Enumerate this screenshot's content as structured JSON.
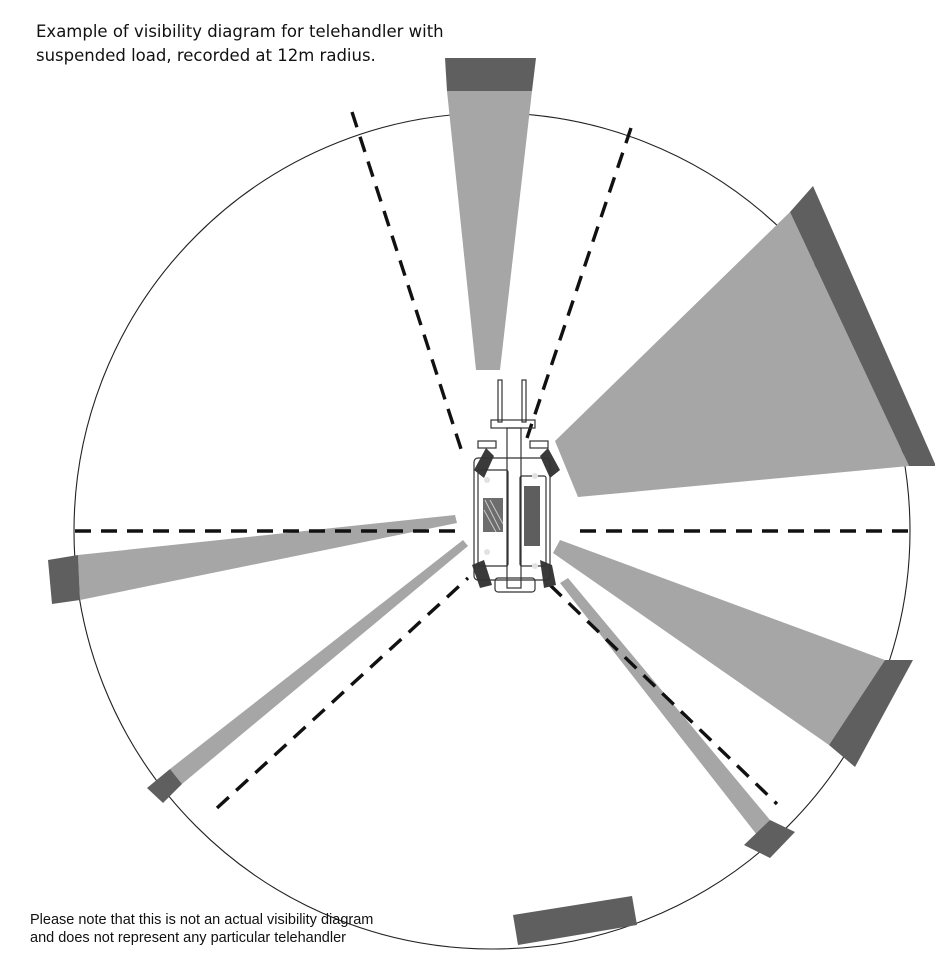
{
  "header": {
    "title_line1": "Example of visibility diagram for telehandler with",
    "title_line2": "suspended load, recorded at 12m radius."
  },
  "footer": {
    "note_line1": "Please note that this is not an actual visibility diagram",
    "note_line2": "and does not represent any particular telehandler"
  },
  "colors": {
    "blind_zone_fill": "#a6a6a6",
    "blind_zone_band": "#5f5f5f",
    "outline": "#222222",
    "background": "#ffffff"
  },
  "icons": {
    "machine": "telehandler-top-view-icon"
  }
}
